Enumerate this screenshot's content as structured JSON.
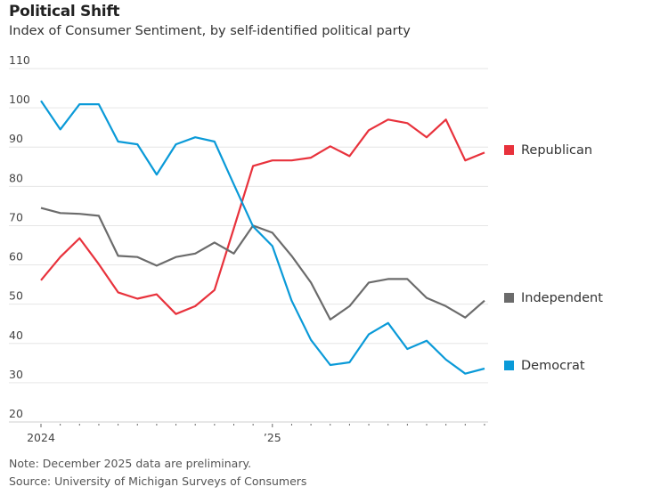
{
  "header": {
    "title": "Political Shift",
    "subtitle": "Index of Consumer Sentiment, by self-identified political party"
  },
  "footer": {
    "note": "Note: December 2025 data are preliminary.",
    "source": "Source: University of Michigan Surveys of Consumers"
  },
  "chart_data": {
    "type": "line",
    "title": "Political Shift",
    "subtitle": "Index of Consumer Sentiment, by self-identified political party",
    "xlabel": "",
    "ylabel": "",
    "ylim": [
      20,
      110
    ],
    "yticks": [
      110,
      100,
      90,
      80,
      70,
      60,
      50,
      40,
      30,
      20
    ],
    "grid": true,
    "x": [
      "Jan 2024",
      "Feb 2024",
      "Mar 2024",
      "Apr 2024",
      "May 2024",
      "Jun 2024",
      "Jul 2024",
      "Aug 2024",
      "Sep 2024",
      "Oct 2024",
      "Nov 2024",
      "Dec 2024",
      "Jan 2025",
      "Feb 2025",
      "Mar 2025",
      "Apr 2025",
      "May 2025",
      "Jun 2025",
      "Jul 2025",
      "Aug 2025",
      "Sep 2025",
      "Oct 2025",
      "Nov 2025",
      "Dec 2025"
    ],
    "xtick_labels": [
      {
        "index": 0,
        "label": "2024"
      },
      {
        "index": 12,
        "label": "’25"
      }
    ],
    "legend_placement": "right (direct labels at line ends)",
    "series": [
      {
        "name": "Republican",
        "color": "#e8323c",
        "values": [
          56.1,
          62.0,
          66.8,
          60.2,
          53.0,
          51.4,
          52.5,
          47.5,
          49.5,
          53.6,
          69.3,
          85.2,
          86.6,
          86.6,
          87.3,
          90.2,
          87.7,
          94.3,
          97.0,
          96.1,
          92.5,
          97.0,
          86.6,
          88.6
        ]
      },
      {
        "name": "Independent",
        "color": "#6b6b6b",
        "values": [
          74.5,
          73.2,
          73.0,
          72.5,
          62.3,
          62.0,
          59.8,
          62.0,
          62.9,
          65.7,
          62.9,
          70.0,
          68.2,
          62.3,
          55.5,
          46.1,
          49.5,
          55.5,
          56.4,
          56.4,
          51.6,
          49.5,
          46.6,
          50.9
        ]
      },
      {
        "name": "Democrat",
        "color": "#0a9ad8",
        "values": [
          101.8,
          94.5,
          100.9,
          100.9,
          91.4,
          90.7,
          83.0,
          90.7,
          92.5,
          91.4,
          80.5,
          69.8,
          64.8,
          50.9,
          40.9,
          34.5,
          35.2,
          42.3,
          45.2,
          38.6,
          40.7,
          35.9,
          32.3,
          33.6
        ]
      }
    ]
  }
}
